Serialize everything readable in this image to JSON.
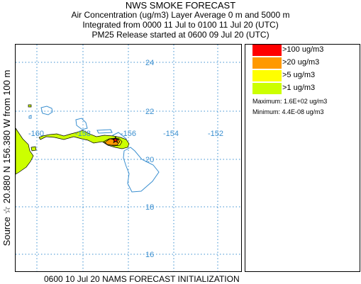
{
  "title": {
    "main": "NWS SMOKE FORECAST",
    "line2": "Air Concentration (ug/m3) Layer Average    0 m and  5000 m",
    "line3": "Integrated from 0000 11 Jul to 0100 11 Jul 20 (UTC)",
    "line4": "PM25 Release started at 0600 09 Jul 20 (UTC)"
  },
  "side_label": "Source ☆  20.880 N 156.380  W      from  100 m",
  "map": {
    "lat_labels": [
      "24",
      "22",
      "20",
      "18",
      "16"
    ],
    "lon_labels": [
      "-160",
      "-158",
      "-156",
      "-154",
      "-152"
    ],
    "grid_color": "#3a8fd0",
    "coast_color": "#3a8fd0"
  },
  "legend": {
    "items": [
      {
        "label": ">100 ug/m3",
        "color": "#ff0000"
      },
      {
        "label": ">20 ug/m3",
        "color": "#ff9900"
      },
      {
        "label": ">5 ug/m3",
        "color": "#ffff00"
      },
      {
        "label": ">1 ug/m3",
        "color": "#ccff00"
      }
    ],
    "maximum": "Maximum: 1.6E+02 ug/m3",
    "minimum": "Minimum: 4.4E-08 ug/m3"
  },
  "footer": "0600 10 Jul 20 NAMS FORECAST INITIALIZATION"
}
